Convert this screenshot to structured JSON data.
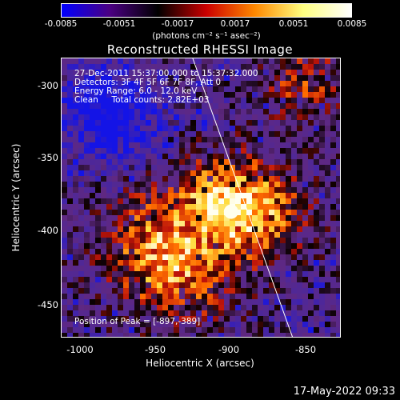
{
  "colorbar": {
    "ticks": [
      "-0.0085",
      "-0.0051",
      "-0.0017",
      "0.0017",
      "0.0051",
      "0.0085"
    ],
    "unit": "(photons cm⁻² s⁻¹ asec⁻²)",
    "range": [
      -0.0085,
      0.0085
    ],
    "colors": [
      "#0000ff",
      "#4b0082",
      "#000000",
      "#cc0000",
      "#ff8800",
      "#ffff80",
      "#ffffff"
    ]
  },
  "title": "Reconstructed RHESSI Image",
  "info": {
    "line1": "27-Dec-2011 15:37:00.000 to 15:37:32.000",
    "line2": "Detectors: 3F 4F 5F 6F 7F 8F, Att 0",
    "line3": "Energy Range: 6.0 - 12.0 keV",
    "line4": "Clean     Total counts: 2.82E+03",
    "peak": "Position of Peak = [-897,-389]"
  },
  "axes": {
    "xlabel": "Heliocentric X (arcsec)",
    "ylabel": "Heliocentric Y (arcsec)",
    "xticks": [
      "-1000",
      "-950",
      "-900",
      "-850"
    ],
    "yticks": [
      "-300",
      "-350",
      "-400",
      "-450"
    ],
    "xlim": [
      -1012,
      -822
    ],
    "ylim": [
      -475,
      -285
    ]
  },
  "image_data": {
    "peak_position": [
      -897,
      -389
    ],
    "limb_line": [
      [
        -923,
        -285
      ],
      [
        -855,
        -475
      ]
    ]
  },
  "footer": {
    "date": "17-May-2022 09:33"
  }
}
